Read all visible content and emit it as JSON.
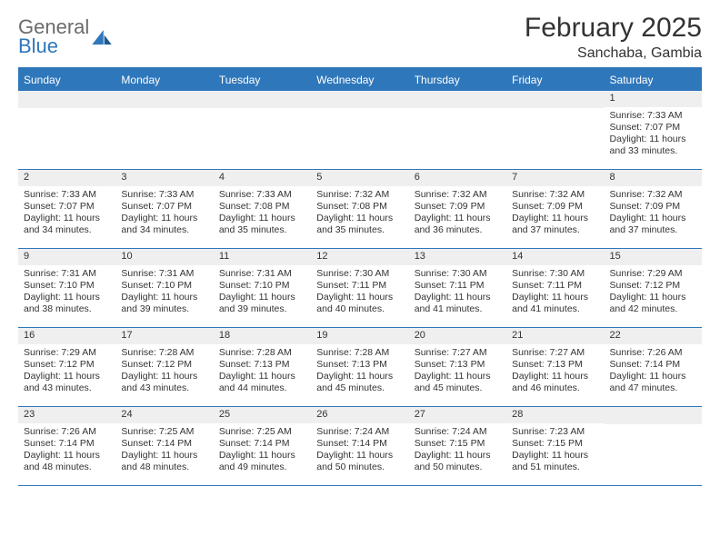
{
  "logo": {
    "top": "General",
    "bottom": "Blue"
  },
  "title": "February 2025",
  "subtitle": "Sanchaba, Gambia",
  "colors": {
    "brand": "#2f77bb",
    "header_bg": "#2f77bb",
    "header_text": "#ffffff",
    "daynum_bg": "#efefef",
    "border": "#2f77bb",
    "text": "#333333",
    "logo_gray": "#6b6b6b"
  },
  "day_names": [
    "Sunday",
    "Monday",
    "Tuesday",
    "Wednesday",
    "Thursday",
    "Friday",
    "Saturday"
  ],
  "weeks": [
    [
      null,
      null,
      null,
      null,
      null,
      null,
      {
        "n": "1",
        "sunrise": "7:33 AM",
        "sunset": "7:07 PM",
        "daylight": "11 hours and 33 minutes."
      }
    ],
    [
      {
        "n": "2",
        "sunrise": "7:33 AM",
        "sunset": "7:07 PM",
        "daylight": "11 hours and 34 minutes."
      },
      {
        "n": "3",
        "sunrise": "7:33 AM",
        "sunset": "7:07 PM",
        "daylight": "11 hours and 34 minutes."
      },
      {
        "n": "4",
        "sunrise": "7:33 AM",
        "sunset": "7:08 PM",
        "daylight": "11 hours and 35 minutes."
      },
      {
        "n": "5",
        "sunrise": "7:32 AM",
        "sunset": "7:08 PM",
        "daylight": "11 hours and 35 minutes."
      },
      {
        "n": "6",
        "sunrise": "7:32 AM",
        "sunset": "7:09 PM",
        "daylight": "11 hours and 36 minutes."
      },
      {
        "n": "7",
        "sunrise": "7:32 AM",
        "sunset": "7:09 PM",
        "daylight": "11 hours and 37 minutes."
      },
      {
        "n": "8",
        "sunrise": "7:32 AM",
        "sunset": "7:09 PM",
        "daylight": "11 hours and 37 minutes."
      }
    ],
    [
      {
        "n": "9",
        "sunrise": "7:31 AM",
        "sunset": "7:10 PM",
        "daylight": "11 hours and 38 minutes."
      },
      {
        "n": "10",
        "sunrise": "7:31 AM",
        "sunset": "7:10 PM",
        "daylight": "11 hours and 39 minutes."
      },
      {
        "n": "11",
        "sunrise": "7:31 AM",
        "sunset": "7:10 PM",
        "daylight": "11 hours and 39 minutes."
      },
      {
        "n": "12",
        "sunrise": "7:30 AM",
        "sunset": "7:11 PM",
        "daylight": "11 hours and 40 minutes."
      },
      {
        "n": "13",
        "sunrise": "7:30 AM",
        "sunset": "7:11 PM",
        "daylight": "11 hours and 41 minutes."
      },
      {
        "n": "14",
        "sunrise": "7:30 AM",
        "sunset": "7:11 PM",
        "daylight": "11 hours and 41 minutes."
      },
      {
        "n": "15",
        "sunrise": "7:29 AM",
        "sunset": "7:12 PM",
        "daylight": "11 hours and 42 minutes."
      }
    ],
    [
      {
        "n": "16",
        "sunrise": "7:29 AM",
        "sunset": "7:12 PM",
        "daylight": "11 hours and 43 minutes."
      },
      {
        "n": "17",
        "sunrise": "7:28 AM",
        "sunset": "7:12 PM",
        "daylight": "11 hours and 43 minutes."
      },
      {
        "n": "18",
        "sunrise": "7:28 AM",
        "sunset": "7:13 PM",
        "daylight": "11 hours and 44 minutes."
      },
      {
        "n": "19",
        "sunrise": "7:28 AM",
        "sunset": "7:13 PM",
        "daylight": "11 hours and 45 minutes."
      },
      {
        "n": "20",
        "sunrise": "7:27 AM",
        "sunset": "7:13 PM",
        "daylight": "11 hours and 45 minutes."
      },
      {
        "n": "21",
        "sunrise": "7:27 AM",
        "sunset": "7:13 PM",
        "daylight": "11 hours and 46 minutes."
      },
      {
        "n": "22",
        "sunrise": "7:26 AM",
        "sunset": "7:14 PM",
        "daylight": "11 hours and 47 minutes."
      }
    ],
    [
      {
        "n": "23",
        "sunrise": "7:26 AM",
        "sunset": "7:14 PM",
        "daylight": "11 hours and 48 minutes."
      },
      {
        "n": "24",
        "sunrise": "7:25 AM",
        "sunset": "7:14 PM",
        "daylight": "11 hours and 48 minutes."
      },
      {
        "n": "25",
        "sunrise": "7:25 AM",
        "sunset": "7:14 PM",
        "daylight": "11 hours and 49 minutes."
      },
      {
        "n": "26",
        "sunrise": "7:24 AM",
        "sunset": "7:14 PM",
        "daylight": "11 hours and 50 minutes."
      },
      {
        "n": "27",
        "sunrise": "7:24 AM",
        "sunset": "7:15 PM",
        "daylight": "11 hours and 50 minutes."
      },
      {
        "n": "28",
        "sunrise": "7:23 AM",
        "sunset": "7:15 PM",
        "daylight": "11 hours and 51 minutes."
      },
      null
    ]
  ],
  "labels": {
    "sunrise": "Sunrise: ",
    "sunset": "Sunset: ",
    "daylight": "Daylight: "
  }
}
